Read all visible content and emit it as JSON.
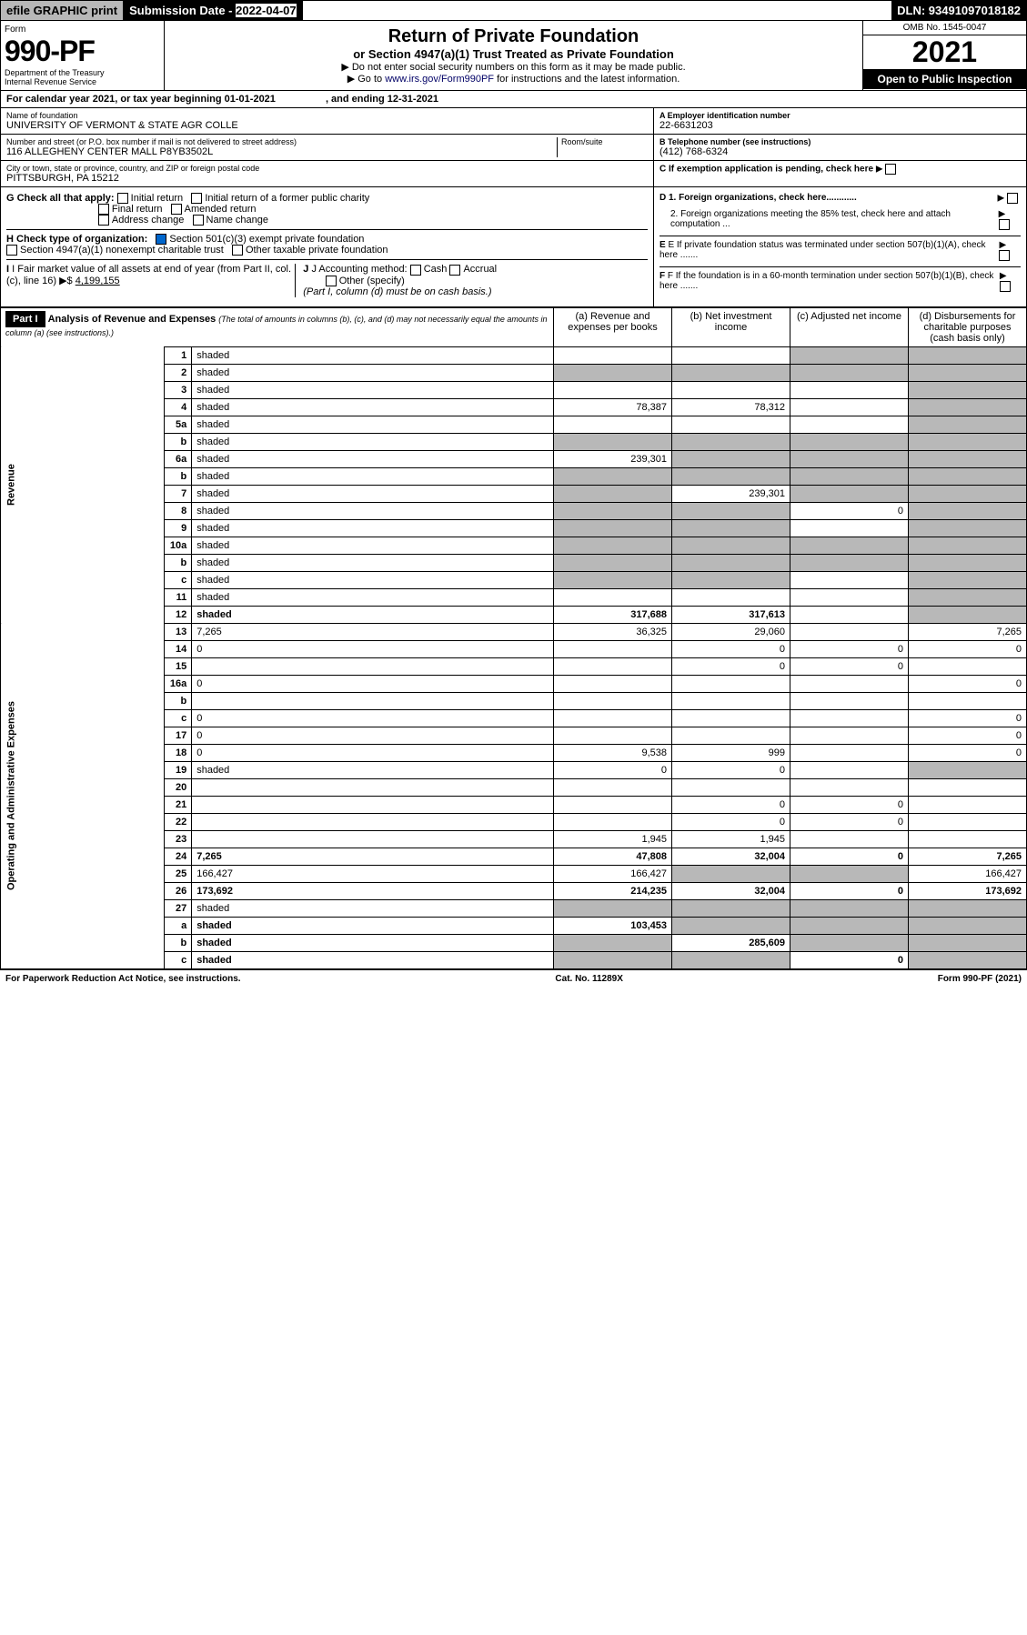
{
  "top": {
    "efile": "efile GRAPHIC print",
    "sub_label": "Submission Date",
    "sub_date": "2022-04-07",
    "dln": "DLN: 93491097018182"
  },
  "header": {
    "form_label": "Form",
    "form_number": "990-PF",
    "dept1": "Department of the Treasury",
    "dept2": "Internal Revenue Service",
    "title": "Return of Private Foundation",
    "subtitle": "or Section 4947(a)(1) Trust Treated as Private Foundation",
    "note1": "▶ Do not enter social security numbers on this form as it may be made public.",
    "note2_pre": "▶ Go to ",
    "note2_link": "www.irs.gov/Form990PF",
    "note2_post": " for instructions and the latest information.",
    "omb": "OMB No. 1545-0047",
    "year": "2021",
    "open": "Open to Public Inspection"
  },
  "cal": {
    "text": "For calendar year 2021, or tax year beginning 01-01-2021",
    "ending": ", and ending 12-31-2021"
  },
  "info": {
    "name_label": "Name of foundation",
    "name": "UNIVERSITY OF VERMONT & STATE AGR COLLE",
    "addr_label": "Number and street (or P.O. box number if mail is not delivered to street address)",
    "addr": "116 ALLEGHENY CENTER MALL P8YB3502L",
    "room_label": "Room/suite",
    "city_label": "City or town, state or province, country, and ZIP or foreign postal code",
    "city": "PITTSBURGH, PA  15212",
    "ein_label": "A Employer identification number",
    "ein": "22-6631203",
    "tel_label": "B Telephone number (see instructions)",
    "tel": "(412) 768-6324",
    "c": "C If exemption application is pending, check here",
    "d1": "D 1. Foreign organizations, check here............",
    "d2": "2. Foreign organizations meeting the 85% test, check here and attach computation ...",
    "e": "E If private foundation status was terminated under section 507(b)(1)(A), check here .......",
    "f": "F If the foundation is in a 60-month termination under section 507(b)(1)(B), check here .......",
    "g_label": "G Check all that apply:",
    "g_opts": [
      "Initial return",
      "Initial return of a former public charity",
      "Final return",
      "Amended return",
      "Address change",
      "Name change"
    ],
    "h_label": "H Check type of organization:",
    "h1": "Section 501(c)(3) exempt private foundation",
    "h2": "Section 4947(a)(1) nonexempt charitable trust",
    "h3": "Other taxable private foundation",
    "i_label": "I Fair market value of all assets at end of year (from Part II, col. (c), line 16)",
    "i_val": "4,199,155",
    "j_label": "J Accounting method:",
    "j_cash": "Cash",
    "j_accrual": "Accrual",
    "j_other": "Other (specify)",
    "j_note": "(Part I, column (d) must be on cash basis.)"
  },
  "part1": {
    "label": "Part I",
    "title": "Analysis of Revenue and Expenses",
    "title_note": "(The total of amounts in columns (b), (c), and (d) may not necessarily equal the amounts in column (a) (see instructions).)",
    "col_a": "(a) Revenue and expenses per books",
    "col_b": "(b) Net investment income",
    "col_c": "(c) Adjusted net income",
    "col_d": "(d) Disbursements for charitable purposes (cash basis only)",
    "side_rev": "Revenue",
    "side_exp": "Operating and Administrative Expenses"
  },
  "rows": [
    {
      "n": "1",
      "d": "shaded",
      "a": "",
      "b": "",
      "c": "shaded"
    },
    {
      "n": "2",
      "d": "shaded",
      "a": "shaded",
      "b": "shaded",
      "c": "shaded"
    },
    {
      "n": "3",
      "d": "shaded",
      "a": "",
      "b": "",
      "c": ""
    },
    {
      "n": "4",
      "d": "shaded",
      "a": "78,387",
      "b": "78,312",
      "c": ""
    },
    {
      "n": "5a",
      "d": "shaded",
      "a": "",
      "b": "",
      "c": ""
    },
    {
      "n": "b",
      "d": "shaded",
      "a": "shaded",
      "b": "shaded",
      "c": "shaded"
    },
    {
      "n": "6a",
      "d": "shaded",
      "a": "239,301",
      "b": "shaded",
      "c": "shaded"
    },
    {
      "n": "b",
      "d": "shaded",
      "a": "shaded",
      "b": "shaded",
      "c": "shaded"
    },
    {
      "n": "7",
      "d": "shaded",
      "a": "shaded",
      "b": "239,301",
      "c": "shaded"
    },
    {
      "n": "8",
      "d": "shaded",
      "a": "shaded",
      "b": "shaded",
      "c": "0"
    },
    {
      "n": "9",
      "d": "shaded",
      "a": "shaded",
      "b": "shaded",
      "c": ""
    },
    {
      "n": "10a",
      "d": "shaded",
      "a": "shaded",
      "b": "shaded",
      "c": "shaded"
    },
    {
      "n": "b",
      "d": "shaded",
      "a": "shaded",
      "b": "shaded",
      "c": "shaded"
    },
    {
      "n": "c",
      "d": "shaded",
      "a": "shaded",
      "b": "shaded",
      "c": ""
    },
    {
      "n": "11",
      "d": "shaded",
      "a": "",
      "b": "",
      "c": ""
    },
    {
      "n": "12",
      "d": "shaded",
      "a": "317,688",
      "b": "317,613",
      "c": "",
      "bold": true
    },
    {
      "n": "13",
      "d": "7,265",
      "a": "36,325",
      "b": "29,060",
      "c": ""
    },
    {
      "n": "14",
      "d": "0",
      "a": "",
      "b": "0",
      "c": "0"
    },
    {
      "n": "15",
      "d": "",
      "a": "",
      "b": "0",
      "c": "0"
    },
    {
      "n": "16a",
      "d": "0",
      "a": "",
      "b": "",
      "c": ""
    },
    {
      "n": "b",
      "d": "",
      "a": "",
      "b": "",
      "c": ""
    },
    {
      "n": "c",
      "d": "0",
      "a": "",
      "b": "",
      "c": ""
    },
    {
      "n": "17",
      "d": "0",
      "a": "",
      "b": "",
      "c": ""
    },
    {
      "n": "18",
      "d": "0",
      "a": "9,538",
      "b": "999",
      "c": ""
    },
    {
      "n": "19",
      "d": "shaded",
      "a": "0",
      "b": "0",
      "c": ""
    },
    {
      "n": "20",
      "d": "",
      "a": "",
      "b": "",
      "c": ""
    },
    {
      "n": "21",
      "d": "",
      "a": "",
      "b": "0",
      "c": "0"
    },
    {
      "n": "22",
      "d": "",
      "a": "",
      "b": "0",
      "c": "0"
    },
    {
      "n": "23",
      "d": "",
      "a": "1,945",
      "b": "1,945",
      "c": ""
    },
    {
      "n": "24",
      "d": "7,265",
      "a": "47,808",
      "b": "32,004",
      "c": "0",
      "bold": true
    },
    {
      "n": "25",
      "d": "166,427",
      "a": "166,427",
      "b": "shaded",
      "c": "shaded"
    },
    {
      "n": "26",
      "d": "173,692",
      "a": "214,235",
      "b": "32,004",
      "c": "0",
      "bold": true
    },
    {
      "n": "27",
      "d": "shaded",
      "a": "shaded",
      "b": "shaded",
      "c": "shaded"
    },
    {
      "n": "a",
      "d": "shaded",
      "a": "103,453",
      "b": "shaded",
      "c": "shaded",
      "bold": true
    },
    {
      "n": "b",
      "d": "shaded",
      "a": "shaded",
      "b": "285,609",
      "c": "shaded",
      "bold": true
    },
    {
      "n": "c",
      "d": "shaded",
      "a": "shaded",
      "b": "shaded",
      "c": "0",
      "bold": true
    }
  ],
  "footer": {
    "left": "For Paperwork Reduction Act Notice, see instructions.",
    "mid": "Cat. No. 11289X",
    "right": "Form 990-PF (2021)"
  }
}
